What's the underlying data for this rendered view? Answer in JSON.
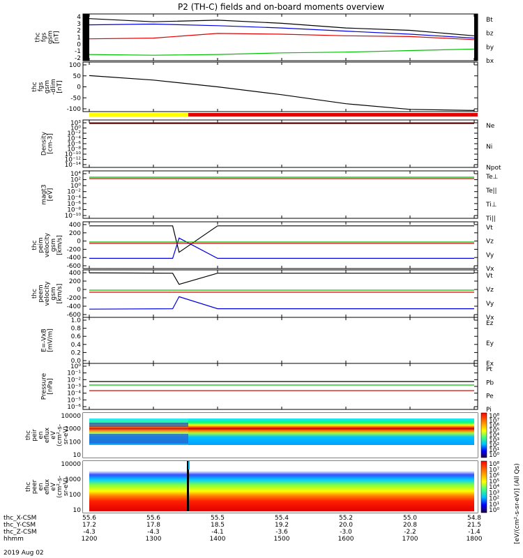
{
  "title": "P2 (TH-C) fields and on-board moments overview",
  "colors": {
    "black": "#000000",
    "red": "#e00000",
    "green": "#00c000",
    "blue": "#0000e0",
    "yellow": "#ffff00",
    "purple": "#800080"
  },
  "panels": [
    {
      "id": "fgs",
      "ylabel": [
        "thc",
        "fgs",
        "gsm",
        "[nT]"
      ],
      "yticks": [
        "4",
        "3",
        "2",
        "1",
        "0",
        "-1",
        "-2"
      ],
      "legend": [
        {
          "text": "Bt",
          "color": "#000000"
        },
        {
          "text": "bz",
          "color": "#e00000"
        },
        {
          "text": "by",
          "color": "#00c000"
        },
        {
          "text": "bx",
          "color": "#0000e0"
        }
      ]
    },
    {
      "id": "fgs_dlimit",
      "ylabel": [
        "thc",
        "fgs",
        "gsm",
        "-dlim",
        "[nT]"
      ],
      "yticks": [
        "100",
        "50",
        "0",
        "-50",
        "-100"
      ],
      "legend": []
    },
    {
      "id": "density",
      "ylabel": [
        "Density",
        "[cm-3]"
      ],
      "yticks": [
        "10³",
        "10⁰",
        "10⁻²",
        "10⁻⁴",
        "10⁻⁶",
        "10⁻⁸",
        "10⁻¹⁰",
        "10⁻¹²",
        "10⁻¹⁴"
      ],
      "legend": [
        {
          "text": "Ne",
          "color": "#e00000"
        },
        {
          "text": "Ni",
          "color": "#000000"
        },
        {
          "text": "Npot",
          "color": "#0000e0"
        }
      ]
    },
    {
      "id": "temp",
      "ylabel": [
        "magt3",
        "[eV]"
      ],
      "yticks": [
        "10⁴",
        "10²",
        "10⁰",
        "10⁻²",
        "10⁻⁴",
        "10⁻⁶",
        "10⁻⁸",
        "10⁻¹⁰"
      ],
      "legend": [
        {
          "text": "Te⊥",
          "color": "#e00000"
        },
        {
          "text": "Te||",
          "color": "#000000"
        },
        {
          "text": "Ti⊥",
          "color": "#0000e0"
        },
        {
          "text": "Ti||",
          "color": "#00c000"
        }
      ]
    },
    {
      "id": "peim",
      "ylabel": [
        "thc",
        "peim",
        "velocity",
        "gsm",
        "[km/s]"
      ],
      "yticks": [
        "400",
        "200",
        "0",
        "-200",
        "-400",
        "-600"
      ],
      "legend": [
        {
          "text": "Vt",
          "color": "#000000"
        },
        {
          "text": "Vz",
          "color": "#e00000"
        },
        {
          "text": "Vy",
          "color": "#00c000"
        },
        {
          "text": "Vx",
          "color": "#0000e0"
        }
      ]
    },
    {
      "id": "peem",
      "ylabel": [
        "thc",
        "peem",
        "velocity",
        "gsm",
        "[km/s]"
      ],
      "yticks": [
        "400",
        "200",
        "0",
        "-200",
        "-400",
        "-600"
      ],
      "legend": [
        {
          "text": "Vt",
          "color": "#000000"
        },
        {
          "text": "Vz",
          "color": "#e00000"
        },
        {
          "text": "Vy",
          "color": "#00c000"
        },
        {
          "text": "Vx",
          "color": "#0000e0"
        }
      ]
    },
    {
      "id": "efield",
      "ylabel": [
        "E=-VxB",
        "[mV/m]"
      ],
      "yticks": [
        "1.0",
        "0.8",
        "0.6",
        "0.4",
        "0.2",
        "0.0"
      ],
      "legend": [
        {
          "text": "Ez",
          "color": "#e00000"
        },
        {
          "text": "Ey",
          "color": "#00c000"
        },
        {
          "text": "Ex",
          "color": "#0000e0"
        }
      ]
    },
    {
      "id": "pressure",
      "ylabel": [
        "Pressure",
        "[nPa]"
      ],
      "yticks": [
        "10⁰",
        "10⁻¹",
        "10⁻²",
        "10⁻³",
        "10⁻⁴",
        "10⁻⁵",
        "10⁻⁶"
      ],
      "legend": [
        {
          "text": "Pt",
          "color": "#000000"
        },
        {
          "text": "Pb",
          "color": "#e00000"
        },
        {
          "text": "Pe",
          "color": "#00c000"
        },
        {
          "text": "Pi",
          "color": "#0000e0"
        }
      ]
    },
    {
      "id": "peir",
      "ylabel": [
        "thc",
        "peir",
        "en",
        "eflux",
        "eV",
        "(cm²-s-",
        "sr-eV)"
      ],
      "yticks": [
        "10000",
        "1000",
        "100",
        "10"
      ],
      "legend": []
    },
    {
      "id": "peer",
      "ylabel": [
        "thc",
        "peer",
        "en",
        "eflux",
        "eV",
        "(cm²-s-",
        "sr-eV)"
      ],
      "yticks": [
        "10000",
        "1000",
        "100",
        "10"
      ],
      "legend": []
    }
  ],
  "colorbar": {
    "label": "[eV/(cm²-s-sr-eV)] (All Qs)",
    "ticks": [
      "10⁸",
      "10⁷",
      "10⁶",
      "10⁵",
      "10⁴",
      "10³",
      "10²",
      "10¹",
      "10⁰"
    ]
  },
  "xaxis": {
    "rows": [
      {
        "label": "thc_X-CSM",
        "values": [
          "55.6",
          "55.6",
          "55.5",
          "55.4",
          "55.2",
          "55.0",
          "54.8"
        ]
      },
      {
        "label": "thc_Y-CSM",
        "values": [
          "17.2",
          "17.8",
          "18.5",
          "19.2",
          "20.0",
          "20.8",
          "21.5"
        ]
      },
      {
        "label": "thc_Z-CSM",
        "values": [
          "-4.3",
          "-4.3",
          "-4.1",
          "-3.6",
          "-3.0",
          "-2.2",
          "-1.4"
        ]
      },
      {
        "label": "hhmm",
        "values": [
          "1200",
          "1300",
          "1400",
          "1500",
          "1600",
          "1700",
          "1800"
        ]
      }
    ],
    "date": "2019 Aug 02"
  },
  "chart_data": {
    "type": "line",
    "title": "P2 (TH-C) fields and on-board moments overview",
    "x_time_hhmm": [
      "1200",
      "1300",
      "1400",
      "1500",
      "1600",
      "1700",
      "1800"
    ],
    "series": [
      {
        "name": "Bt",
        "panel": "fgs",
        "x": [
          1200,
          1300,
          1400,
          1500,
          1600,
          1700,
          1800
        ],
        "values": [
          3.4,
          3.0,
          3.2,
          2.8,
          2.2,
          1.9,
          1.2
        ]
      },
      {
        "name": "bz",
        "panel": "fgs",
        "x": [
          1200,
          1300,
          1400,
          1500,
          1600,
          1700,
          1800
        ],
        "values": [
          0.8,
          0.9,
          1.5,
          1.4,
          1.2,
          1.1,
          0.7
        ]
      },
      {
        "name": "by",
        "panel": "fgs",
        "x": [
          1200,
          1300,
          1400,
          1500,
          1600,
          1700,
          1800
        ],
        "values": [
          -1.2,
          -1.3,
          -1.2,
          -1.0,
          -0.9,
          -0.7,
          -0.5
        ]
      },
      {
        "name": "bx",
        "panel": "fgs",
        "x": [
          1200,
          1300,
          1400,
          1500,
          1600,
          1700,
          1800
        ],
        "values": [
          2.6,
          2.7,
          2.5,
          2.2,
          1.8,
          1.4,
          0.9
        ]
      },
      {
        "name": "",
        "panel": "fgs_dlimit",
        "x": [
          1200,
          1300,
          1400,
          1500,
          1600,
          1700,
          1800
        ],
        "values": [
          40,
          20,
          -10,
          -45,
          -85,
          -110,
          -115
        ]
      },
      {
        "name": "Vt",
        "panel": "peim",
        "x": [
          1200,
          1330,
          1340,
          1400,
          1800
        ],
        "values": [
          400,
          400,
          -250,
          400,
          400
        ]
      },
      {
        "name": "Vx",
        "panel": "peim",
        "x": [
          1200,
          1330,
          1340,
          1400,
          1800
        ],
        "values": [
          -400,
          -400,
          100,
          -400,
          -400
        ]
      },
      {
        "name": "Vt",
        "panel": "peem",
        "x": [
          1200,
          1330,
          1340,
          1400,
          1800
        ],
        "values": [
          430,
          420,
          150,
          420,
          420
        ]
      },
      {
        "name": "Vx",
        "panel": "peem",
        "x": [
          1200,
          1330,
          1340,
          1400,
          1800
        ],
        "values": [
          -450,
          -440,
          -150,
          -440,
          -440
        ]
      }
    ],
    "xlabel": "hhmm",
    "ylabel": ""
  }
}
